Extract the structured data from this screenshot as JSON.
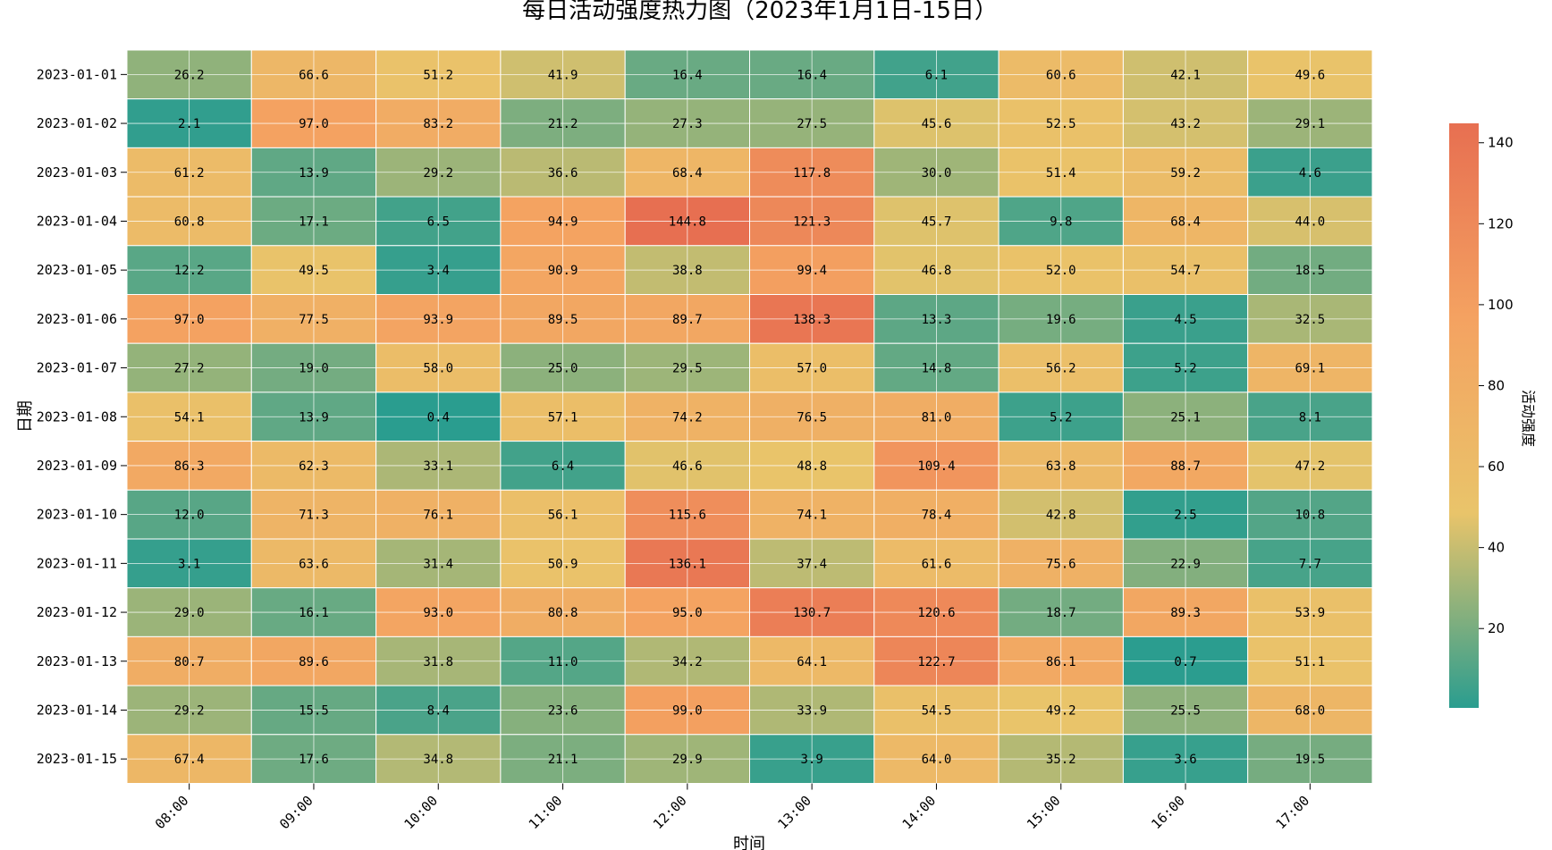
{
  "chart_data": {
    "type": "heatmap",
    "title": "每日活动强度热力图（2023年1月1日-15日）",
    "xlabel": "时间",
    "ylabel": "日期",
    "x_categories": [
      "08:00",
      "09:00",
      "10:00",
      "11:00",
      "12:00",
      "13:00",
      "14:00",
      "15:00",
      "16:00",
      "17:00"
    ],
    "y_categories": [
      "2023-01-01",
      "2023-01-02",
      "2023-01-03",
      "2023-01-04",
      "2023-01-05",
      "2023-01-06",
      "2023-01-07",
      "2023-01-08",
      "2023-01-09",
      "2023-01-10",
      "2023-01-11",
      "2023-01-12",
      "2023-01-13",
      "2023-01-14",
      "2023-01-15"
    ],
    "values": [
      [
        26.2,
        66.6,
        51.2,
        41.9,
        16.4,
        16.4,
        6.1,
        60.6,
        42.1,
        49.6
      ],
      [
        2.1,
        97.0,
        83.2,
        21.2,
        27.3,
        27.5,
        45.6,
        52.5,
        43.2,
        29.1
      ],
      [
        61.2,
        13.9,
        29.2,
        36.6,
        68.4,
        117.8,
        30.0,
        51.4,
        59.2,
        4.6
      ],
      [
        60.8,
        17.1,
        6.5,
        94.9,
        144.8,
        121.3,
        45.7,
        9.8,
        68.4,
        44.0
      ],
      [
        12.2,
        49.5,
        3.4,
        90.9,
        38.8,
        99.4,
        46.8,
        52.0,
        54.7,
        18.5
      ],
      [
        97.0,
        77.5,
        93.9,
        89.5,
        89.7,
        138.3,
        13.3,
        19.6,
        4.5,
        32.5
      ],
      [
        27.2,
        19.0,
        58.0,
        25.0,
        29.5,
        57.0,
        14.8,
        56.2,
        5.2,
        69.1
      ],
      [
        54.1,
        13.9,
        0.4,
        57.1,
        74.2,
        76.5,
        81.0,
        5.2,
        25.1,
        8.1
      ],
      [
        86.3,
        62.3,
        33.1,
        6.4,
        46.6,
        48.8,
        109.4,
        63.8,
        88.7,
        47.2
      ],
      [
        12.0,
        71.3,
        76.1,
        56.1,
        115.6,
        74.1,
        78.4,
        42.8,
        2.5,
        10.8
      ],
      [
        3.1,
        63.6,
        31.4,
        50.9,
        136.1,
        37.4,
        61.6,
        75.6,
        22.9,
        7.7
      ],
      [
        29.0,
        16.1,
        93.0,
        80.8,
        95.0,
        130.7,
        120.6,
        18.7,
        89.3,
        53.9
      ],
      [
        80.7,
        89.6,
        31.8,
        11.0,
        34.2,
        64.1,
        122.7,
        86.1,
        0.7,
        51.1
      ],
      [
        29.2,
        15.5,
        8.4,
        23.6,
        99.0,
        33.9,
        54.5,
        49.2,
        25.5,
        68.0
      ],
      [
        67.4,
        17.6,
        34.8,
        21.1,
        29.9,
        3.9,
        64.0,
        35.2,
        3.6,
        19.5
      ]
    ],
    "colorbar": {
      "label": "活动强度",
      "min": 0.4,
      "max": 144.8,
      "ticks": [
        20,
        40,
        60,
        80,
        100,
        120,
        140
      ],
      "colors": [
        "#2a9d8f",
        "#e9c46a",
        "#f4a261",
        "#e76f51"
      ]
    },
    "grid": true
  }
}
